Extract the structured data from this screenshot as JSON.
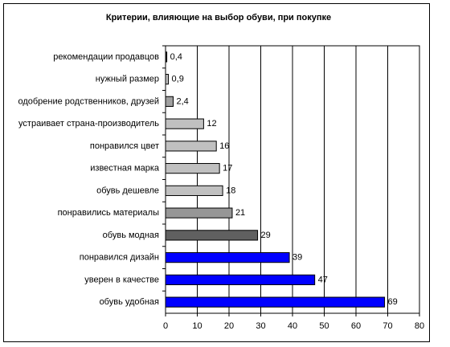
{
  "chart_data": {
    "type": "hbar",
    "title": "Критерии, влияющие на выбор обуви, при покупке",
    "categories": [
      "рекомендации продавцов",
      "нужный размер",
      "одобрение родственников, друзей",
      "устраивает страна-производитель",
      "понравился цвет",
      "известная марка",
      "обувь дешевле",
      "понравились материалы",
      "обувь модная",
      "понравился дизайн",
      "уверен в качестве",
      "обувь удобная"
    ],
    "values": [
      0.4,
      0.9,
      2.4,
      12,
      16,
      17,
      18,
      21,
      29,
      39,
      47,
      69
    ],
    "value_labels": [
      "0,4",
      "0,9",
      "2,4",
      "12",
      "16",
      "17",
      "18",
      "21",
      "29",
      "39",
      "47",
      "69"
    ],
    "colors": [
      "#404040",
      "#c0c0c0",
      "#a0a0a0",
      "#c0c0c0",
      "#c0c0c0",
      "#c0c0c0",
      "#c0c0c0",
      "#969696",
      "#606060",
      "#0000ff",
      "#0000ff",
      "#0000ff"
    ],
    "xlim": [
      0,
      80
    ],
    "xticks": [
      0,
      10,
      20,
      30,
      40,
      50,
      60,
      70,
      80
    ],
    "grid": true
  }
}
